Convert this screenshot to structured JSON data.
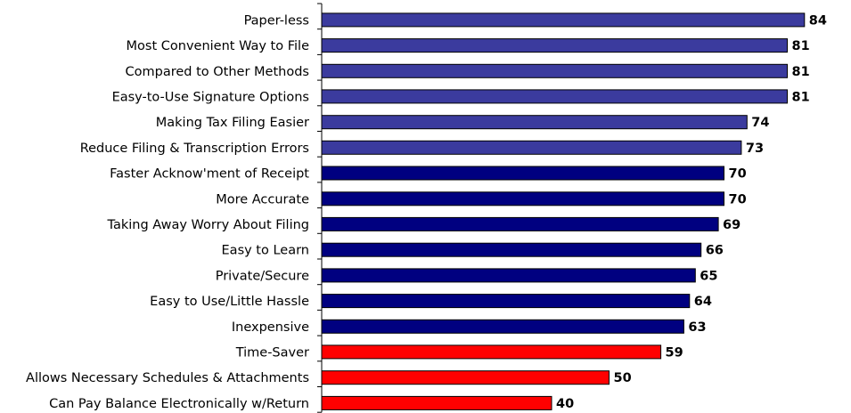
{
  "chart_data": {
    "type": "bar",
    "orientation": "horizontal",
    "categories": [
      "Paper-less",
      "Most Convenient Way to File",
      "Compared to Other Methods",
      "Easy-to-Use Signature Options",
      "Making Tax Filing Easier",
      "Reduce Filing & Transcription Errors",
      "Faster Acknow'ment of Receipt",
      "More Accurate",
      "Taking Away Worry About Filing",
      "Easy to Learn",
      "Private/Secure",
      "Easy to Use/Little Hassle",
      "Inexpensive",
      "Time-Saver",
      "Allows Necessary Schedules & Attachments",
      "Can Pay Balance Electronically w/Return"
    ],
    "values": [
      84,
      81,
      81,
      81,
      74,
      73,
      70,
      70,
      69,
      66,
      65,
      64,
      63,
      59,
      50,
      40
    ],
    "bar_colors": [
      "#3b3b9e",
      "#3b3b9e",
      "#3b3b9e",
      "#3b3b9e",
      "#3b3b9e",
      "#3b3b9e",
      "#000080",
      "#000080",
      "#000080",
      "#000080",
      "#000080",
      "#000080",
      "#000080",
      "#ff0000",
      "#ff0000",
      "#ff0000"
    ],
    "xlim": [
      0,
      84
    ],
    "title": "",
    "xlabel": "",
    "ylabel": "",
    "grid": false,
    "legend": "none",
    "data_labels": true
  }
}
